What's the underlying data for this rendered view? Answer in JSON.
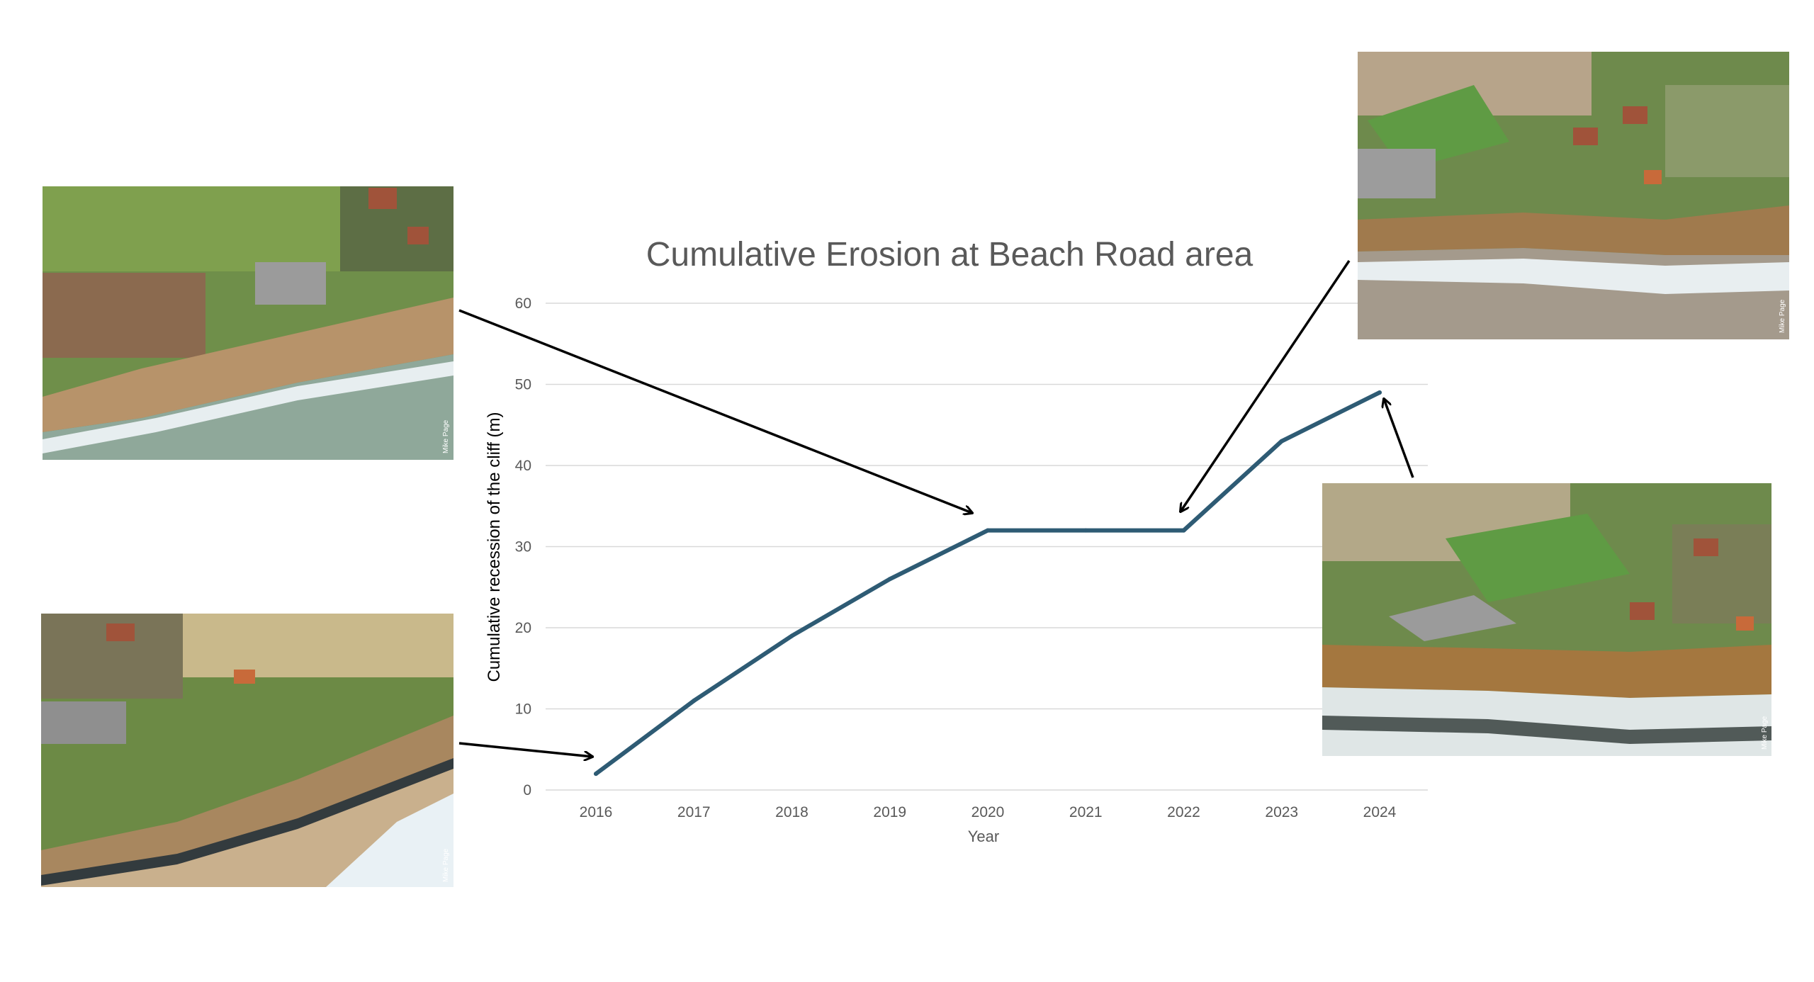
{
  "chart_data": {
    "type": "line",
    "title": "Cumulative Erosion at Beach Road area",
    "xlabel": "Year",
    "ylabel": "Cumulative recession of the cliff (m)",
    "x": [
      "2016",
      "2017",
      "2018",
      "2019",
      "2020",
      "2021",
      "2022",
      "2023",
      "2024"
    ],
    "series": [
      {
        "values": [
          2,
          11,
          19,
          26,
          32,
          32,
          32,
          43,
          49
        ]
      }
    ],
    "ylim": [
      0,
      60
    ],
    "yticks": [
      0,
      10,
      20,
      30,
      40,
      50,
      60
    ],
    "grid": true,
    "legend": "none",
    "line_color": "#2e5b74",
    "grid_color": "#d9d9d9",
    "text_color": "#595959"
  },
  "photos": [
    {
      "name": "photo-top-left",
      "credit": "Mike Page",
      "annotates_year": "2020"
    },
    {
      "name": "photo-bottom-left",
      "credit": "Mike Page",
      "annotates_year": "2016"
    },
    {
      "name": "photo-top-right",
      "credit": "Mike Page",
      "annotates_year": "2022"
    },
    {
      "name": "photo-bottom-right",
      "credit": "Mike Page",
      "annotates_year": "2024"
    }
  ]
}
